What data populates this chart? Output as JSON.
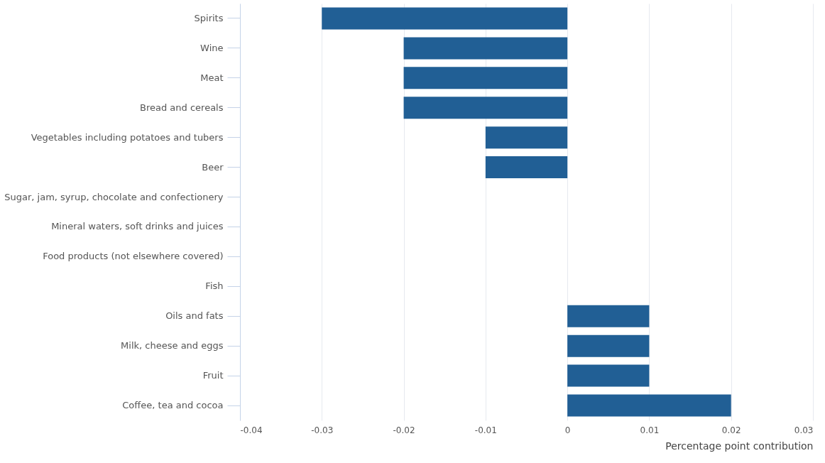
{
  "chart_data": {
    "type": "bar",
    "orientation": "horizontal",
    "xlabel": "Percentage point contribution",
    "categories": [
      "Spirits",
      "Wine",
      "Meat",
      "Bread and cereals",
      "Vegetables including potatoes and tubers",
      "Beer",
      "Sugar, jam, syrup, chocolate and confectionery",
      "Mineral waters, soft drinks and juices",
      "Food products (not elsewhere covered)",
      "Fish",
      "Oils and fats",
      "Milk, cheese and eggs",
      "Fruit",
      "Coffee, tea and cocoa"
    ],
    "values": [
      -0.03,
      -0.02,
      -0.02,
      -0.02,
      -0.01,
      -0.01,
      0,
      0,
      0,
      0,
      0.01,
      0.01,
      0.01,
      0.02
    ],
    "color": "#215f95",
    "xlim": [
      -0.04,
      0.03
    ],
    "xticks": [
      -0.04,
      -0.03,
      -0.02,
      -0.01,
      0,
      0.01,
      0.02,
      0.03
    ],
    "grid": "x"
  }
}
